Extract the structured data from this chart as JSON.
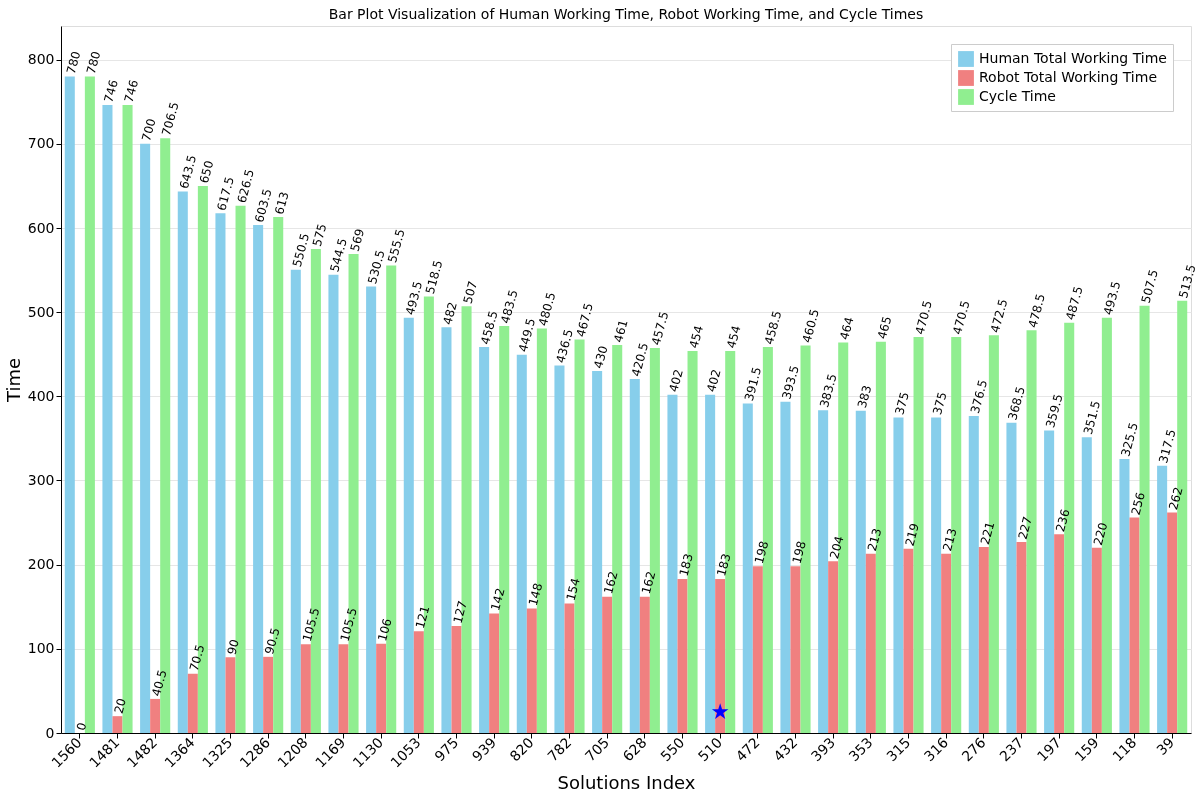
{
  "chart_data": {
    "type": "bar",
    "title": "Bar Plot Visualization of Human Working Time, Robot Working Time, and Cycle Times",
    "xlabel": "Solutions Index",
    "ylabel": "Time",
    "categories": [
      "1560",
      "1481",
      "1482",
      "1364",
      "1325",
      "1286",
      "1208",
      "1169",
      "1130",
      "1053",
      "975",
      "939",
      "820",
      "782",
      "705",
      "628",
      "550",
      "510",
      "472",
      "432",
      "393",
      "353",
      "315",
      "316",
      "276",
      "237",
      "197",
      "159",
      "118",
      "39"
    ],
    "series": [
      {
        "name": "Human Total Working Time",
        "color": "#87ceeb",
        "values": [
          780,
          746,
          700,
          643.5,
          617.5,
          603.5,
          550.5,
          544.5,
          530.5,
          493.5,
          482,
          458.5,
          449.5,
          436.5,
          430,
          420.5,
          402,
          402,
          391.5,
          393.5,
          383.5,
          383,
          375,
          375,
          376.5,
          368.5,
          359.5,
          351.5,
          325.5,
          317.5
        ]
      },
      {
        "name": "Robot Total Working Time",
        "color": "#f08080",
        "values": [
          0,
          20,
          40.5,
          70.5,
          90,
          90.5,
          105.5,
          105.5,
          106,
          121,
          127,
          142,
          148,
          154,
          162,
          162,
          183,
          183,
          198,
          198,
          204,
          213,
          219,
          213,
          221,
          227,
          236,
          220,
          256,
          262
        ]
      },
      {
        "name": "Cycle Time",
        "color": "#90ee90",
        "values": [
          780,
          746,
          706.5,
          650,
          626.5,
          613,
          575,
          569,
          555.5,
          518.5,
          507,
          483.5,
          480.5,
          467.5,
          461,
          457.5,
          454,
          454,
          458.5,
          460.5,
          464,
          465,
          470.5,
          470.5,
          472.5,
          478.5,
          487.5,
          493.5,
          507.5,
          513.5
        ]
      },
      {
        "type": "scatter",
        "color": "#0000ff",
        "marker": "star",
        "x": [
          "510"
        ],
        "values": [
          25
        ],
        "value_labels": [
          null
        ]
      }
    ],
    "ylim": [
      0,
      840
    ],
    "yticks": [
      0,
      100,
      200,
      300,
      400,
      500,
      600,
      700,
      800
    ],
    "grid": "y",
    "legend": "top right",
    "data_labels": true
  }
}
